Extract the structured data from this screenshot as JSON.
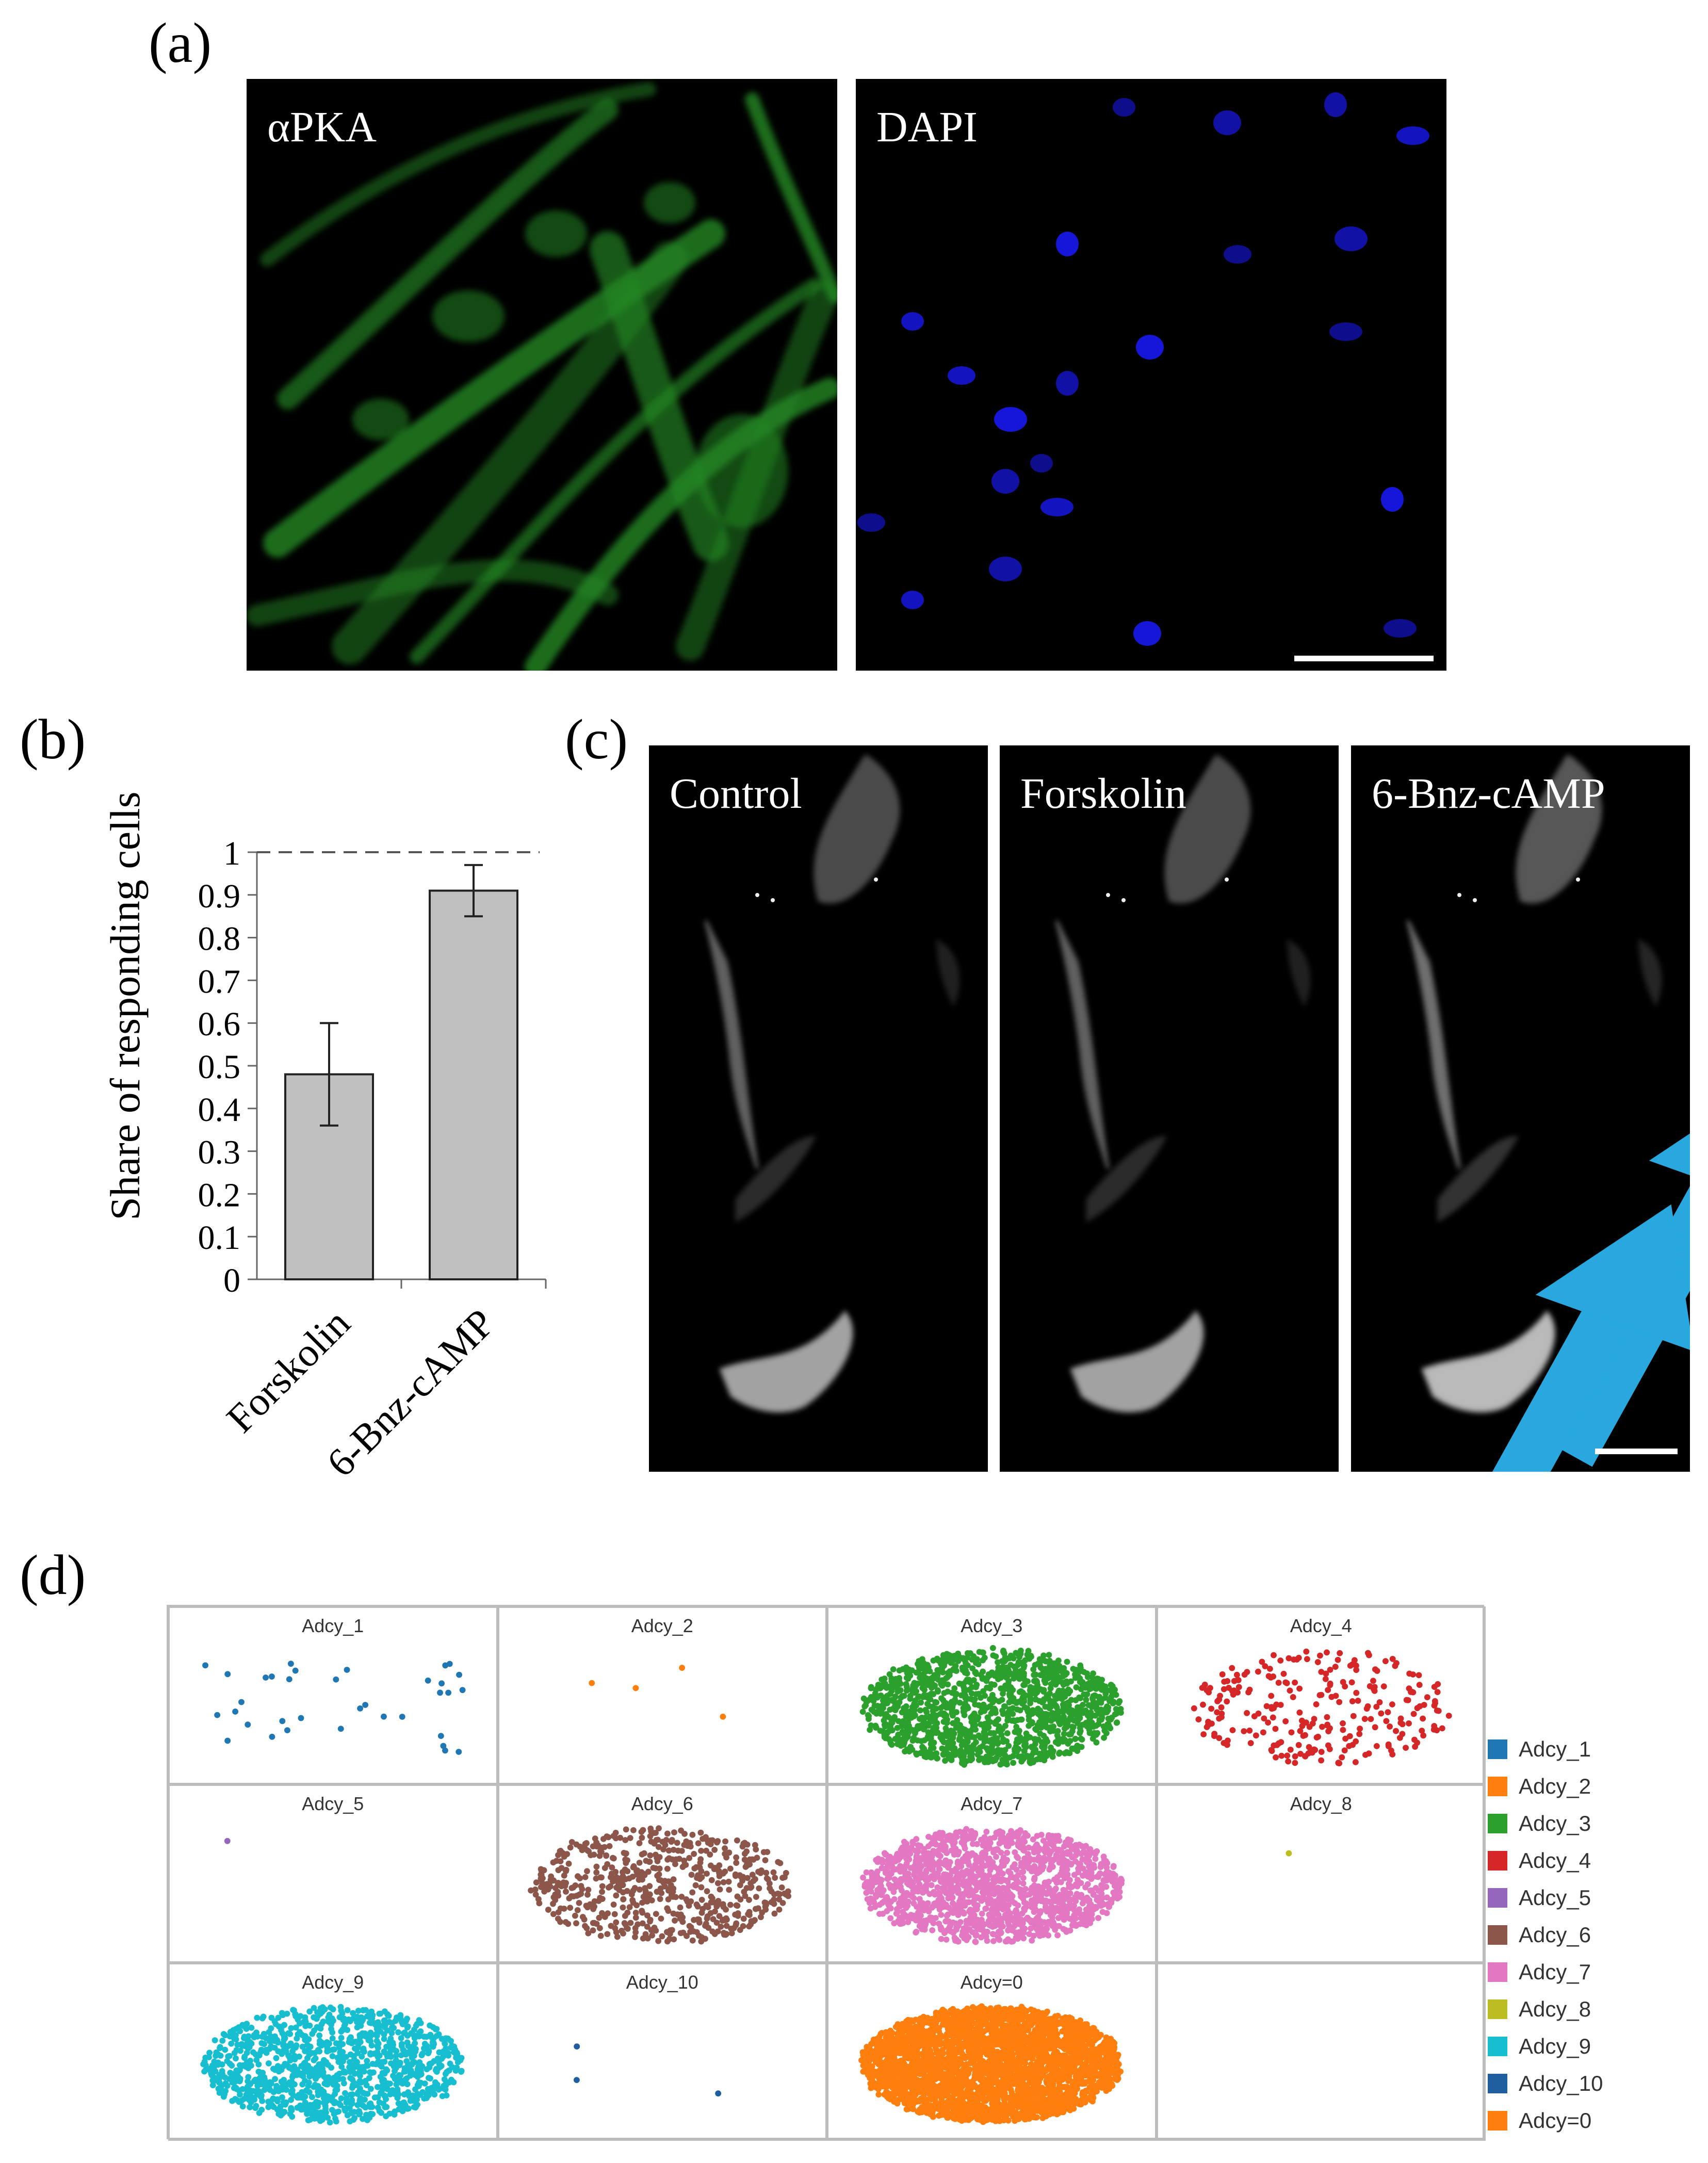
{
  "panel_labels": {
    "a": "(a)",
    "b": "(b)",
    "c": "(c)",
    "d": "(d)"
  },
  "panel_a": {
    "images": [
      {
        "label": "αPKA",
        "color": "#2fb52f"
      },
      {
        "label": "DAPI",
        "color": "#1a1aff"
      }
    ]
  },
  "panel_c": {
    "images": [
      {
        "label": "Control"
      },
      {
        "label": "Forskolin",
        "arrows": [
          "orange"
        ]
      },
      {
        "label": "6-Bnz-cAMP",
        "arrows": [
          "blue",
          "blue",
          "blue"
        ]
      }
    ],
    "arrow_colors": {
      "orange": "#f5a623",
      "blue": "#29a8e0"
    }
  },
  "chart_data": {
    "type": "bar",
    "categories": [
      "Forskolin",
      "6-Bnz-cAMP"
    ],
    "values": [
      0.48,
      0.91
    ],
    "errors": [
      0.12,
      0.06
    ],
    "ylabel": "Share of responding cells",
    "ylim": [
      0,
      1
    ],
    "yticks": [
      "0",
      "0.1",
      "0.2",
      "0.3",
      "0.4",
      "0.5",
      "0.6",
      "0.7",
      "0.8",
      "0.9",
      "1"
    ],
    "reference_line": 1,
    "bar_color": "#c0c0c0"
  },
  "panel_d": {
    "cells": [
      {
        "title": "Adcy_1",
        "color": "#1f77b4",
        "points": 35,
        "shape": "sparse"
      },
      {
        "title": "Adcy_2",
        "color": "#ff7f0e",
        "points": 4,
        "shape": "sparse"
      },
      {
        "title": "Adcy_3",
        "color": "#2ca02c",
        "points": 1400,
        "shape": "blob"
      },
      {
        "title": "Adcy_4",
        "color": "#d62728",
        "points": 260,
        "shape": "blob"
      },
      {
        "title": "Adcy_5",
        "color": "#9467bd",
        "points": 1,
        "shape": "sparse"
      },
      {
        "title": "Adcy_6",
        "color": "#8c564b",
        "points": 600,
        "shape": "blob"
      },
      {
        "title": "Adcy_7",
        "color": "#e377c2",
        "points": 1500,
        "shape": "blob"
      },
      {
        "title": "Adcy_8",
        "color": "#bcbd22",
        "points": 1,
        "shape": "sparse"
      },
      {
        "title": "Adcy_9",
        "color": "#17becf",
        "points": 1100,
        "shape": "blob"
      },
      {
        "title": "Adcy_10",
        "color": "#1f5f9f",
        "points": 3,
        "shape": "sparse"
      },
      {
        "title": "Adcy=0",
        "color": "#ff7f0e",
        "points": 3200,
        "shape": "blob"
      },
      {
        "title": "",
        "color": "#ffffff",
        "points": 0,
        "shape": "none"
      }
    ],
    "legend": [
      {
        "label": "Adcy_1",
        "color": "#1f77b4"
      },
      {
        "label": "Adcy_2",
        "color": "#ff7f0e"
      },
      {
        "label": "Adcy_3",
        "color": "#2ca02c"
      },
      {
        "label": "Adcy_4",
        "color": "#d62728"
      },
      {
        "label": "Adcy_5",
        "color": "#9467bd"
      },
      {
        "label": "Adcy_6",
        "color": "#8c564b"
      },
      {
        "label": "Adcy_7",
        "color": "#e377c2"
      },
      {
        "label": "Adcy_8",
        "color": "#bcbd22"
      },
      {
        "label": "Adcy_9",
        "color": "#17becf"
      },
      {
        "label": "Adcy_10",
        "color": "#1f5f9f"
      },
      {
        "label": "Adcy=0",
        "color": "#ff7f0e"
      }
    ]
  }
}
